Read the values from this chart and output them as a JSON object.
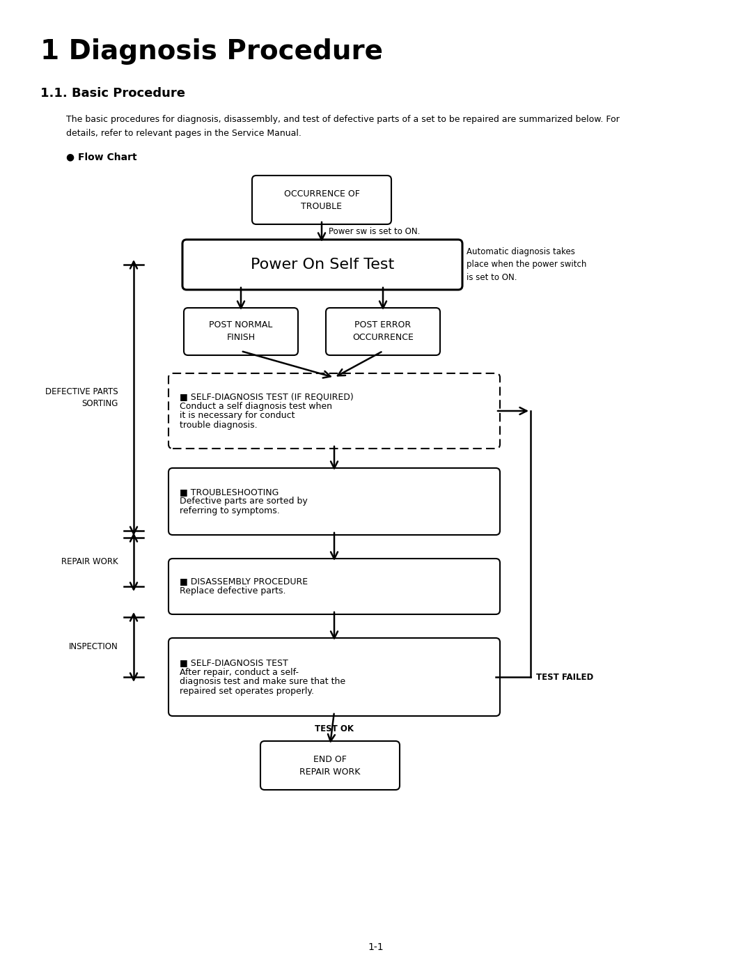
{
  "title": "1 Diagnosis Procedure",
  "subtitle": "1.1. Basic Procedure",
  "body_text_line1": "The basic procedures for diagnosis, disassembly, and test of defective parts of a set to be repaired are summarized below. For",
  "body_text_line2": "details, refer to relevant pages in the Service Manual.",
  "flow_chart_label": "● Flow Chart",
  "page_number": "1-1",
  "bg_color": "#ffffff",
  "auto_diag_note": "Automatic diagnosis takes\nplace when the power switch\nis set to ON.",
  "power_sw_note": "Power sw is set to ON.",
  "defective_parts_label": "DEFECTIVE PARTS\nSORTING",
  "repair_work_label": "REPAIR WORK",
  "inspection_label": "INSPECTION",
  "test_failed_label": "TEST FAILED",
  "test_ok_label": "TEST OK"
}
